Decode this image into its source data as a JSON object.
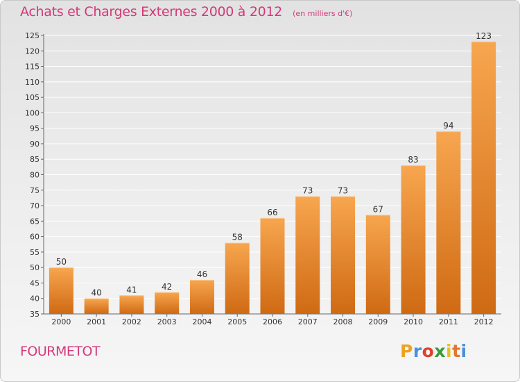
{
  "page": {
    "title": "Achats et Charges Externes 2000 à 2012",
    "unit_note": "(en milliers d'€)",
    "town": "FOURMETOT",
    "brand": {
      "letters": [
        "P",
        "r",
        "o",
        "x",
        "i",
        "t",
        "i"
      ],
      "colors": [
        "#f0a020",
        "#4a8fd8",
        "#e0402a",
        "#3a9a3a",
        "#e8c020",
        "#e07830",
        "#4a8fd8"
      ]
    }
  },
  "colors": {
    "title": "#d4397a",
    "bar_light": "#f7a64f",
    "bar_dark": "#cf6a13",
    "grid": "#ffffff",
    "axis_text": "#333333"
  },
  "chart_data": {
    "type": "bar",
    "title": "Achats et Charges Externes 2000 à 2012",
    "subtitle": "(en milliers d'€)",
    "categories": [
      "2000",
      "2001",
      "2002",
      "2003",
      "2004",
      "2005",
      "2006",
      "2007",
      "2008",
      "2009",
      "2010",
      "2011",
      "2012"
    ],
    "values": [
      50,
      40,
      41,
      42,
      46,
      58,
      66,
      73,
      73,
      67,
      83,
      94,
      123
    ],
    "ylim": [
      35,
      125
    ],
    "yticks": [
      35,
      40,
      45,
      50,
      55,
      60,
      65,
      70,
      75,
      80,
      85,
      90,
      95,
      100,
      105,
      110,
      115,
      120,
      125
    ],
    "grid": true,
    "data_labels": true
  }
}
